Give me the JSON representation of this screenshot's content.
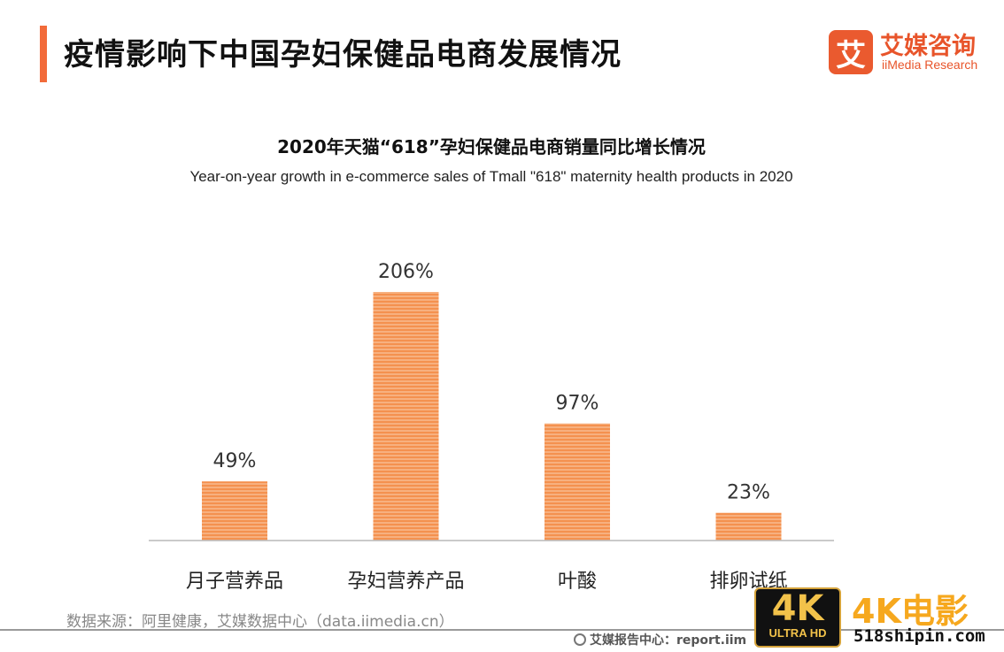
{
  "header": {
    "title": "疫情影响下中国孕妇保健品电商发展情况"
  },
  "brand": {
    "logo_char": "艾",
    "name_cn": "艾媒咨询",
    "name_en": "iiMedia Research"
  },
  "colors": {
    "accent": "#f26b3a",
    "bar": "#f59a5f",
    "brand": "#e8542a"
  },
  "chart_data": {
    "type": "bar",
    "title": "2020年天猫“618”孕妇保健品电商销量同比增长情况",
    "subtitle": "Year-on-year growth in e-commerce sales of Tmall \"618\" maternity health products in 2020",
    "categories": [
      "月子营养品",
      "孕妇营养产品",
      "叶酸",
      "排卵试纸"
    ],
    "values": [
      49,
      206,
      97,
      23
    ],
    "value_labels": [
      "49%",
      "206%",
      "97%",
      "23%"
    ],
    "unit": "%",
    "ylim": [
      0,
      206
    ],
    "grid": false,
    "legend": "none"
  },
  "footer": {
    "source": "数据来源：阿里健康，艾媒数据中心（data.iimedia.cn）",
    "report": "艾媒报告中心：report.iim"
  },
  "watermark": {
    "badge_big": "4K",
    "badge_small": "ULTRA HD",
    "title": "4K电影",
    "site": "518shipin.com"
  }
}
